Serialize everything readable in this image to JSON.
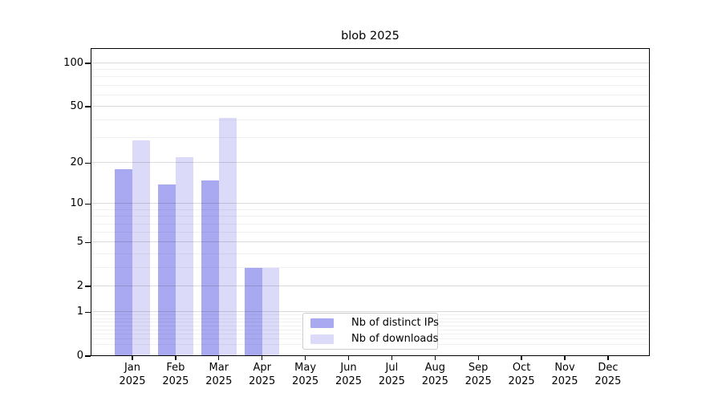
{
  "title": "blob 2025",
  "chart_data": {
    "type": "bar",
    "title": "blob 2025",
    "categories": [
      "Jan",
      "Feb",
      "Mar",
      "Apr",
      "May",
      "Jun",
      "Jul",
      "Aug",
      "Sep",
      "Oct",
      "Nov",
      "Dec"
    ],
    "category_year": "2025",
    "series": [
      {
        "name": "Nb of distinct IPs",
        "color": "#a9a9f2",
        "values": [
          18,
          14,
          15,
          3,
          0,
          0,
          0,
          0,
          0,
          0,
          0,
          0
        ]
      },
      {
        "name": "Nb of downloads",
        "color": "#dbdbf9",
        "values": [
          29,
          22,
          42,
          3,
          0,
          0,
          0,
          0,
          0,
          0,
          0,
          0
        ]
      }
    ],
    "y_scale": "log1p",
    "y_ticks": [
      0,
      1,
      2,
      5,
      10,
      20,
      50,
      100
    ],
    "y_minor_ticks": [
      0.2,
      0.3,
      0.4,
      0.5,
      0.6,
      0.7,
      0.8,
      0.9,
      3,
      4,
      6,
      7,
      8,
      9,
      30,
      40,
      60,
      70,
      80,
      90
    ],
    "ylim": [
      0,
      127.4
    ],
    "grid": true,
    "legend_position": "lower center"
  }
}
